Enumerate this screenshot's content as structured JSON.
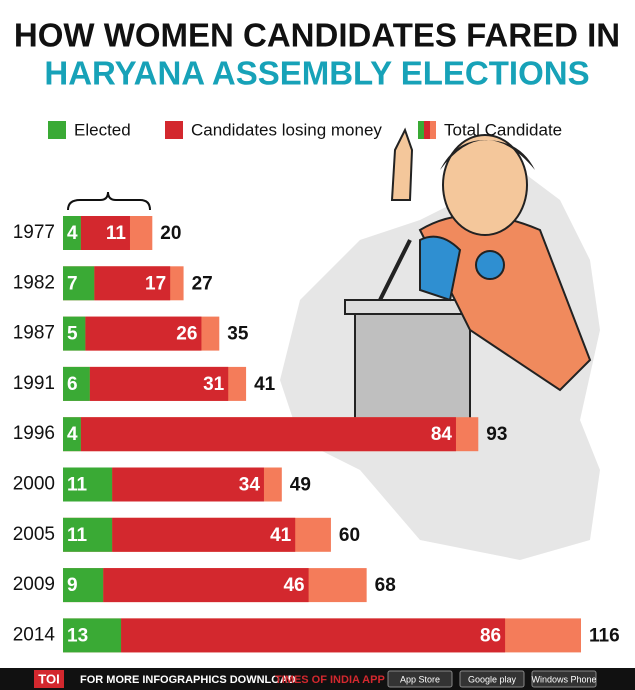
{
  "chart_data": {
    "type": "bar",
    "title": "HOW WOMEN CANDIDATES FARED IN",
    "subtitle": "HARYANA ASSEMBLY ELECTIONS",
    "categories": [
      "1977",
      "1982",
      "1987",
      "1991",
      "1996",
      "2000",
      "2005",
      "2009",
      "2014"
    ],
    "series": [
      {
        "name": "Elected",
        "color": "#3aaa35",
        "values": [
          4,
          7,
          5,
          6,
          4,
          11,
          11,
          9,
          13
        ]
      },
      {
        "name": "Candidates losing money",
        "color": "#d3282e",
        "values": [
          11,
          17,
          26,
          31,
          84,
          34,
          41,
          46,
          86
        ]
      },
      {
        "name": "Total Candidate",
        "color": "#f47c5a",
        "values": [
          20,
          27,
          35,
          41,
          93,
          49,
          60,
          68,
          116
        ]
      }
    ]
  },
  "footer": {
    "logo": "TOI",
    "text": "FOR MORE  INFOGRAPHICS DOWNLOAD",
    "app": "TIMES OF INDIA  APP",
    "badges": [
      "App Store",
      "Google play",
      "Windows Phone"
    ]
  }
}
